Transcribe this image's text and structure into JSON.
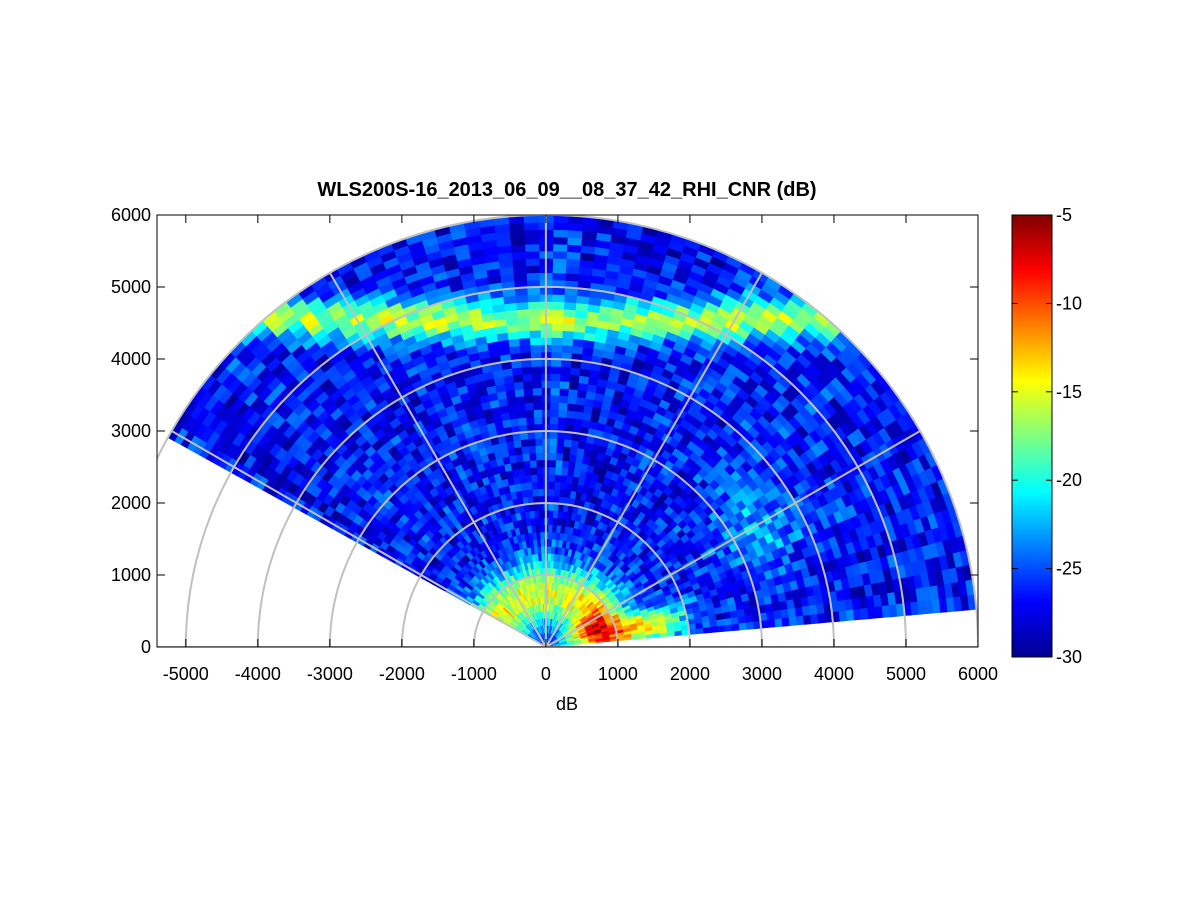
{
  "chart_data": {
    "type": "heatmap",
    "subtype": "polar-rhi",
    "title": "WLS200S-16_2013_06_09__08_37_42_RHI_CNR (dB)",
    "xlabel": "dB",
    "ylabel": "",
    "xlim": [
      -5400,
      6000
    ],
    "ylim": [
      0,
      6000
    ],
    "x_ticks": [
      -5000,
      -4000,
      -3000,
      -2000,
      -1000,
      0,
      1000,
      2000,
      3000,
      4000,
      5000,
      6000
    ],
    "y_ticks": [
      0,
      1000,
      2000,
      3000,
      4000,
      5000,
      6000
    ],
    "x_tick_labels": [
      "-5000",
      "-4000",
      "-3000",
      "-2000",
      "-1000",
      "0",
      "1000",
      "2000",
      "3000",
      "4000",
      "5000",
      "6000"
    ],
    "y_tick_labels": [
      "0",
      "1000",
      "2000",
      "3000",
      "4000",
      "5000",
      "6000"
    ],
    "polar_grid": {
      "range_rings": [
        1000,
        2000,
        3000,
        4000,
        5000,
        6000
      ],
      "spokes_deg": [
        0,
        30,
        60,
        90,
        120,
        150,
        180
      ]
    },
    "scan": {
      "elevation_range_deg": [
        5,
        151
      ],
      "max_range": 6000,
      "range_gate": 100,
      "azimuth_step_deg": 2
    },
    "colormap": "jet",
    "colorbar": {
      "min": -30,
      "max": -5,
      "ticks": [
        -30,
        -25,
        -20,
        -15,
        -10,
        -5
      ],
      "tick_labels": [
        "-30",
        "-25",
        "-20",
        "-15",
        "-10",
        "-5"
      ]
    },
    "features": [
      {
        "description_range_m": [
          200,
          1600
        ],
        "cnr_db": -8,
        "region": "near-ground"
      },
      {
        "description_range_m": [
          4400,
          4900
        ],
        "cnr_db": -16,
        "region": "elevated layer"
      },
      {
        "background_cnr_db": -26
      }
    ]
  }
}
